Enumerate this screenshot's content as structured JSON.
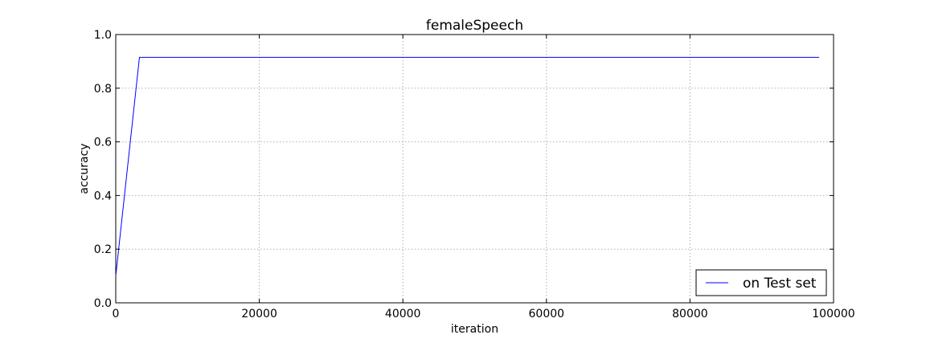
{
  "chart_data": {
    "type": "line",
    "title": "femaleSpeech",
    "xlabel": "iteration",
    "ylabel": "accuracy",
    "xlim": [
      0,
      100000
    ],
    "ylim": [
      0.0,
      1.0
    ],
    "xticks": [
      0,
      20000,
      40000,
      60000,
      80000,
      100000
    ],
    "yticks": [
      0.0,
      0.2,
      0.4,
      0.6,
      0.8,
      1.0
    ],
    "xtick_labels": [
      "0",
      "20000",
      "40000",
      "60000",
      "80000",
      "100000"
    ],
    "ytick_labels": [
      "0.0",
      "0.2",
      "0.4",
      "0.6",
      "0.8",
      "1.0"
    ],
    "grid": true,
    "legend_position": "bottom-right",
    "series": [
      {
        "name": "on Test set",
        "color": "#0000ff",
        "x": [
          0,
          3300,
          98000
        ],
        "y": [
          0.1,
          0.915,
          0.915
        ]
      }
    ]
  }
}
